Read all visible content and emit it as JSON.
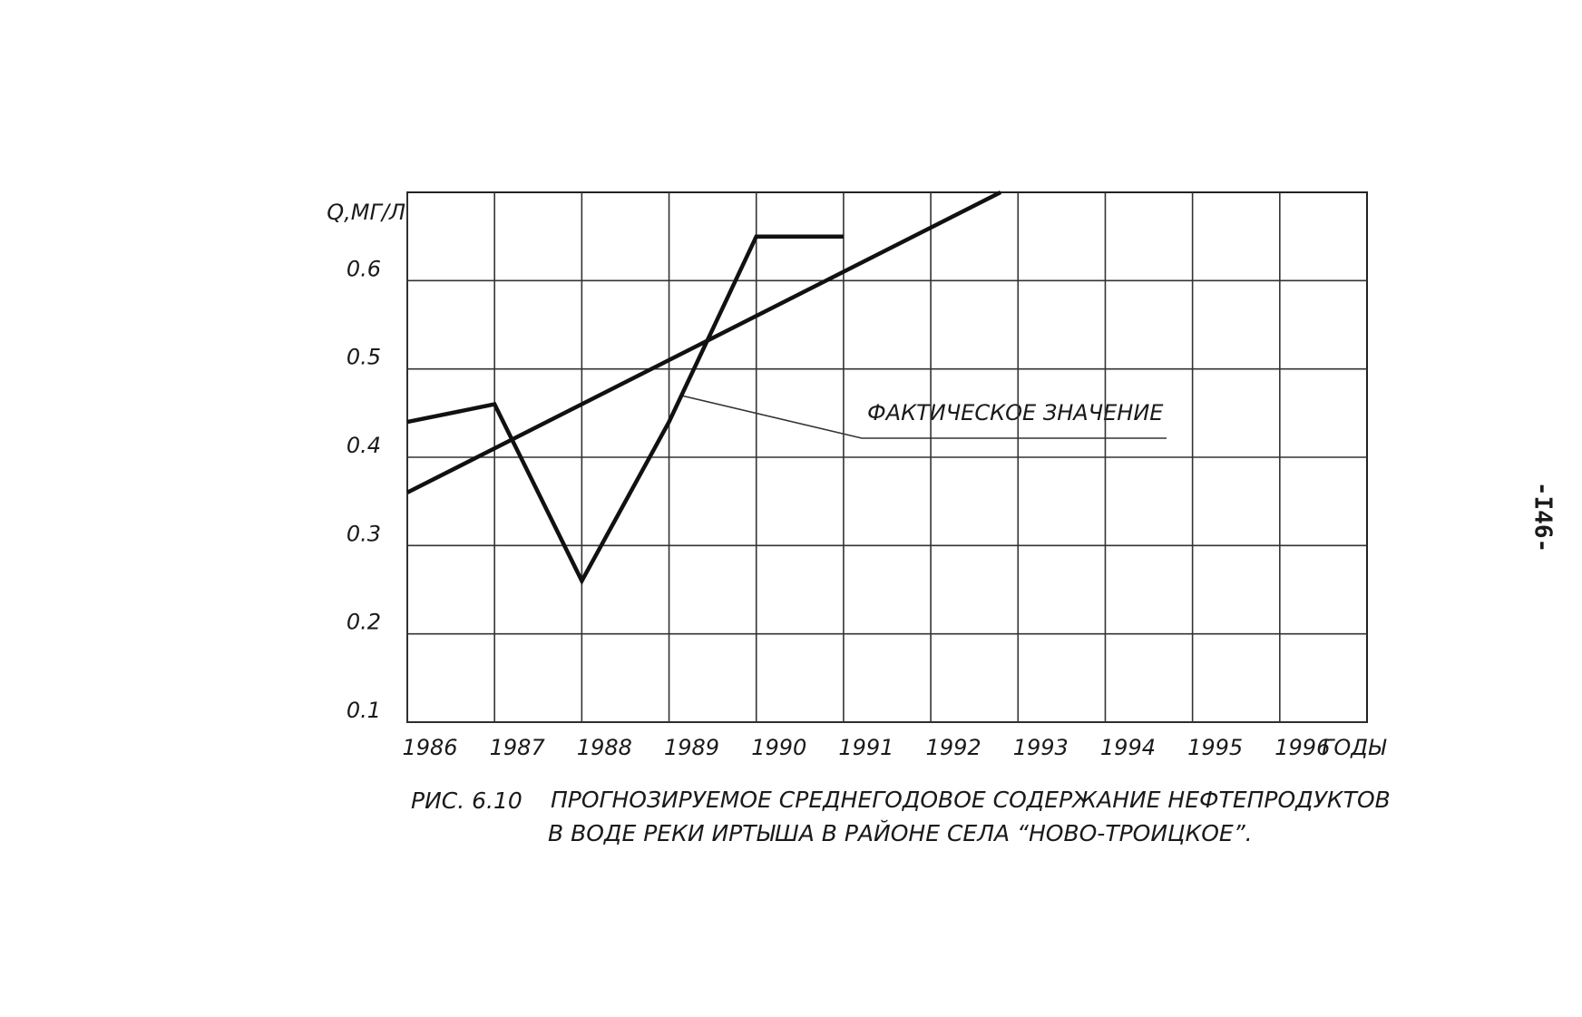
{
  "chart_data": {
    "type": "line",
    "y_label": "Q,МГ/Л",
    "x_label": "ГОДЫ",
    "figure_label": "РИС. 6.10",
    "caption": [
      "ПРОГНОЗИРУЕМОЕ СРЕДНЕГОДОВОЕ СОДЕРЖАНИЕ НЕФТЕПРОДУКТОВ",
      "В ВОДЕ РЕКИ ИРТЫША В РАЙОНЕ СЕЛА “НОВО-ТРОИЦКОЕ”."
    ],
    "xlim": [
      1986,
      1997
    ],
    "xticks": [
      1986,
      1987,
      1988,
      1989,
      1990,
      1991,
      1992,
      1993,
      1994,
      1995,
      1996
    ],
    "ylim": [
      0.1,
      0.7
    ],
    "yticks": [
      0.1,
      0.2,
      0.3,
      0.4,
      0.5,
      0.6
    ],
    "grid": true,
    "series": [
      {
        "name": "ФАКТИЧЕСКОЕ ЗНАЧЕНИЕ",
        "color": "#111111",
        "x": [
          1986,
          1987,
          1988,
          1989,
          1990,
          1991
        ],
        "values": [
          0.44,
          0.46,
          0.26,
          0.44,
          0.65,
          0.65
        ]
      },
      {
        "color": "#111111",
        "x": [
          1986,
          1992.8
        ],
        "values": [
          0.36,
          0.7
        ]
      }
    ]
  },
  "page_number": "-I46-"
}
